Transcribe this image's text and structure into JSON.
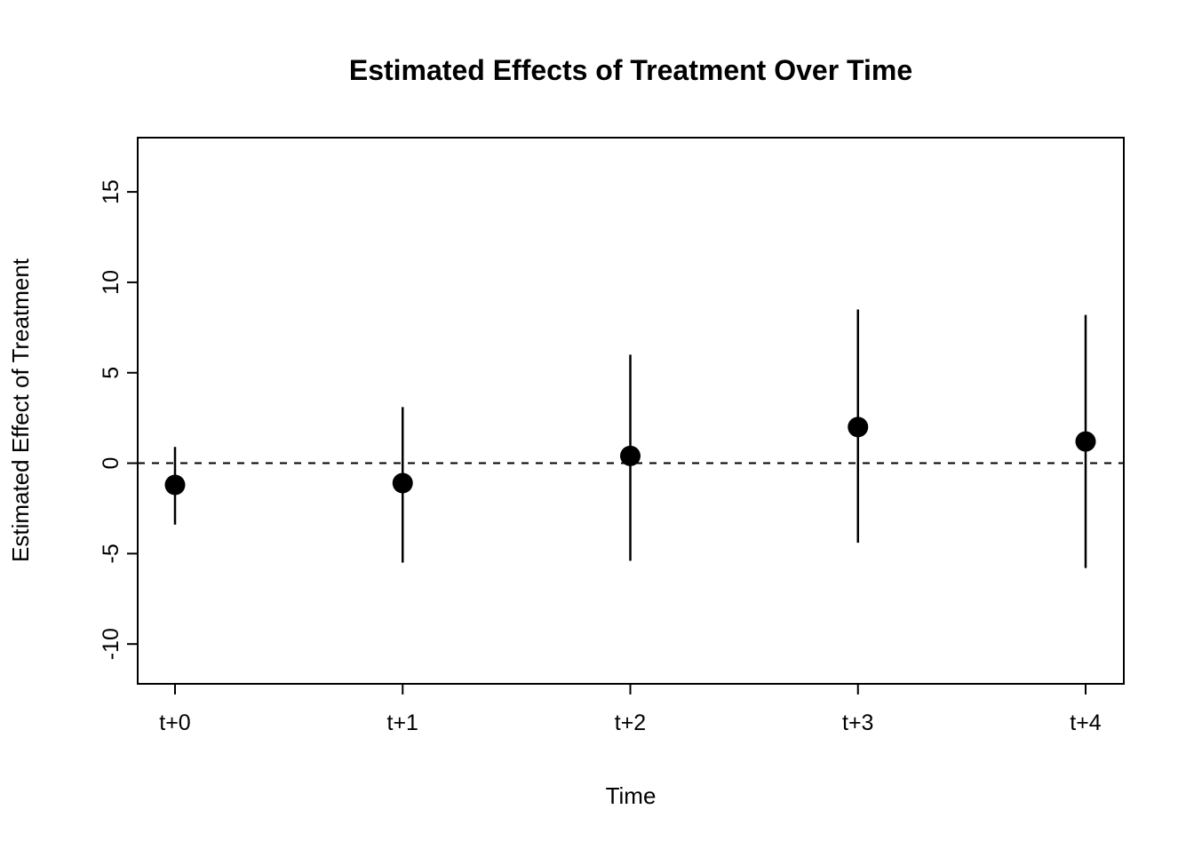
{
  "chart_data": {
    "type": "scatter",
    "title": "Estimated Effects of Treatment Over Time",
    "xlabel": "Time",
    "ylabel": "Estimated Effect of Treatment",
    "categories": [
      "t+0",
      "t+1",
      "t+2",
      "t+3",
      "t+4"
    ],
    "series": [
      {
        "name": "point-estimates",
        "values": [
          -1.2,
          -1.1,
          0.4,
          2.0,
          1.2
        ]
      },
      {
        "name": "ci-lower",
        "values": [
          -3.4,
          -5.5,
          -5.4,
          -4.4,
          -5.8
        ]
      },
      {
        "name": "ci-upper",
        "values": [
          0.9,
          3.1,
          6.0,
          8.5,
          8.2
        ]
      }
    ],
    "yticks": [
      -10,
      -5,
      0,
      5,
      10,
      15
    ],
    "ylim": [
      -12.2,
      18.0
    ],
    "reference_line": 0,
    "grid": false,
    "legend": "none",
    "point_color": "#000000",
    "line_color": "#000000",
    "background_color": "#ffffff"
  }
}
